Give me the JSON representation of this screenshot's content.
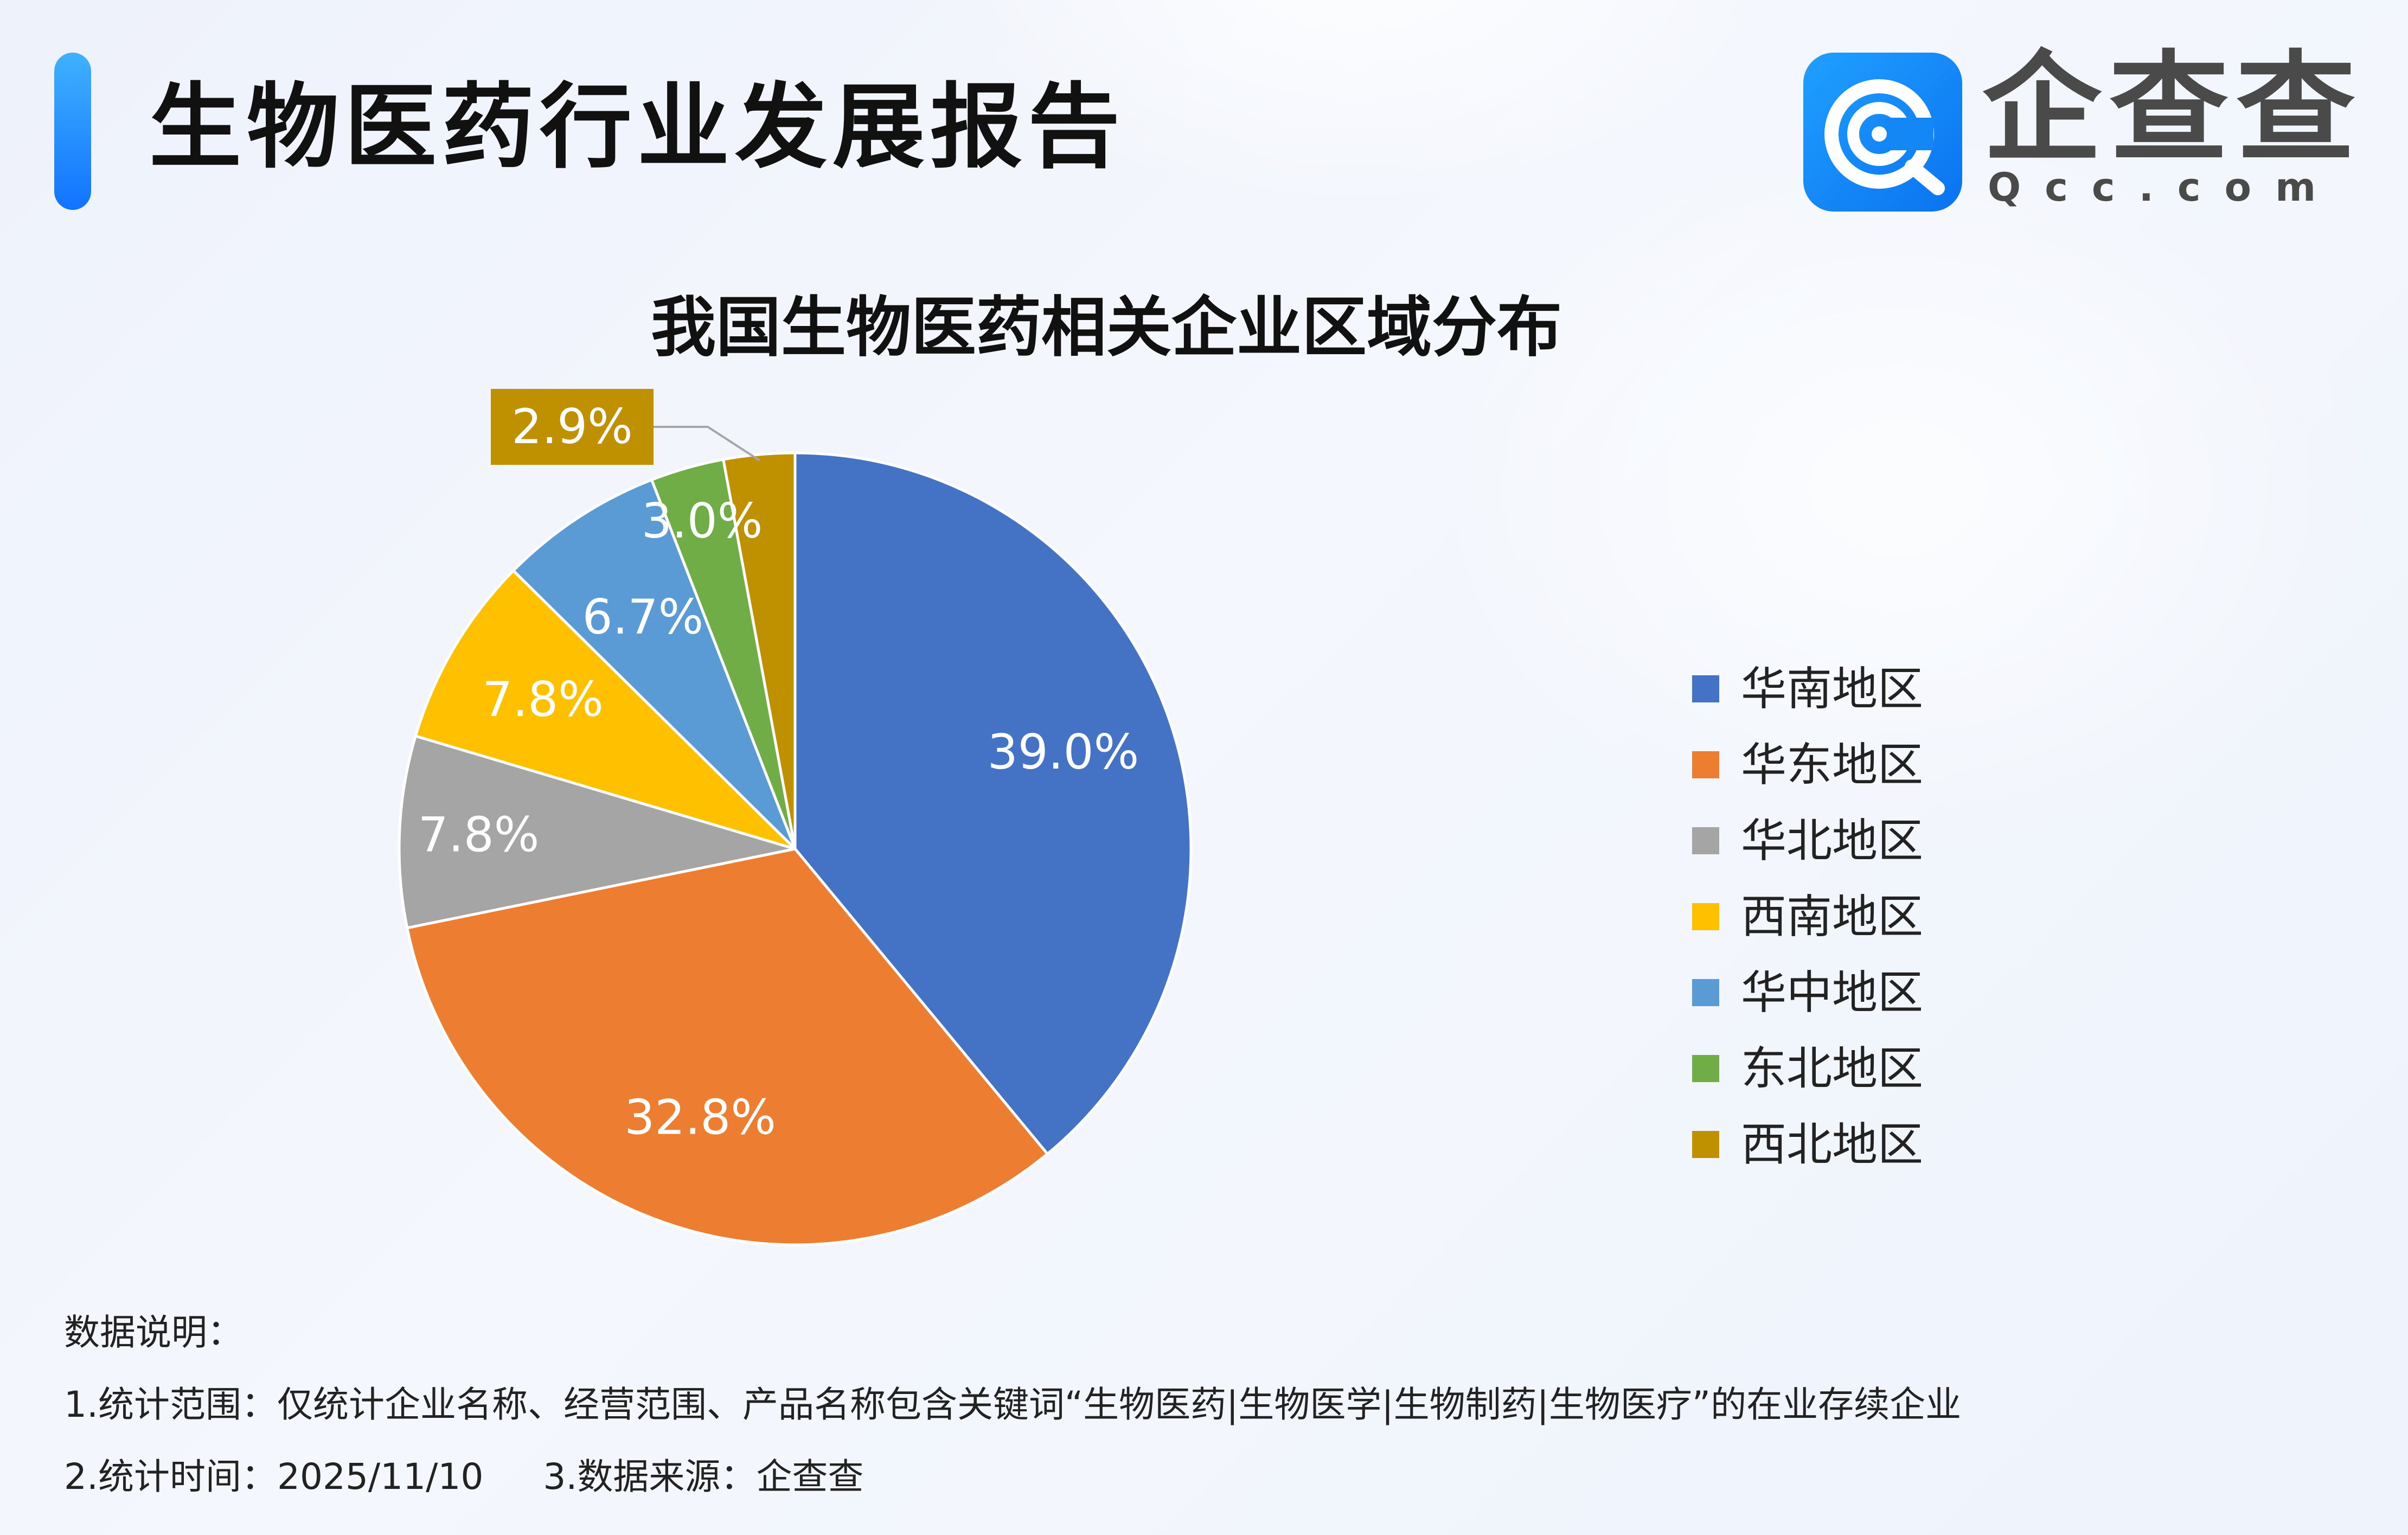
{
  "header": {
    "title": "生物医药行业发展报告",
    "logo_text": "企查查",
    "logo_sub": "Qcc.com",
    "logo_icon": "qcc-logo-icon",
    "accent_color": "#1a84ff"
  },
  "chart_data": {
    "type": "pie",
    "title": "我国生物医药相关企业区域分布",
    "unit": "%",
    "categories": [
      "华南地区",
      "华东地区",
      "华北地区",
      "西南地区",
      "华中地区",
      "东北地区",
      "西北地区"
    ],
    "values": [
      39.0,
      32.8,
      7.8,
      7.8,
      6.7,
      3.0,
      2.9
    ],
    "labels": [
      "39.0%",
      "32.8%",
      "7.8%",
      "7.8%",
      "6.7%",
      "3.0%",
      "2.9%"
    ],
    "colors": [
      "#4472c4",
      "#ed7d31",
      "#a5a5a5",
      "#ffc000",
      "#5b9bd5",
      "#70ad47",
      "#bf9000"
    ],
    "legend_position": "right",
    "start": "12 o'clock, clockwise"
  },
  "notes": {
    "heading": "数据说明：",
    "line1": "1.统计范围：仅统计企业名称、经营范围、产品名称包含关键词“生物医药|生物医学|生物制药|生物医疗”的在业存续企业",
    "line2a": "2.统计时间：2025/11/10",
    "line2b": "3.数据来源：企查查"
  }
}
